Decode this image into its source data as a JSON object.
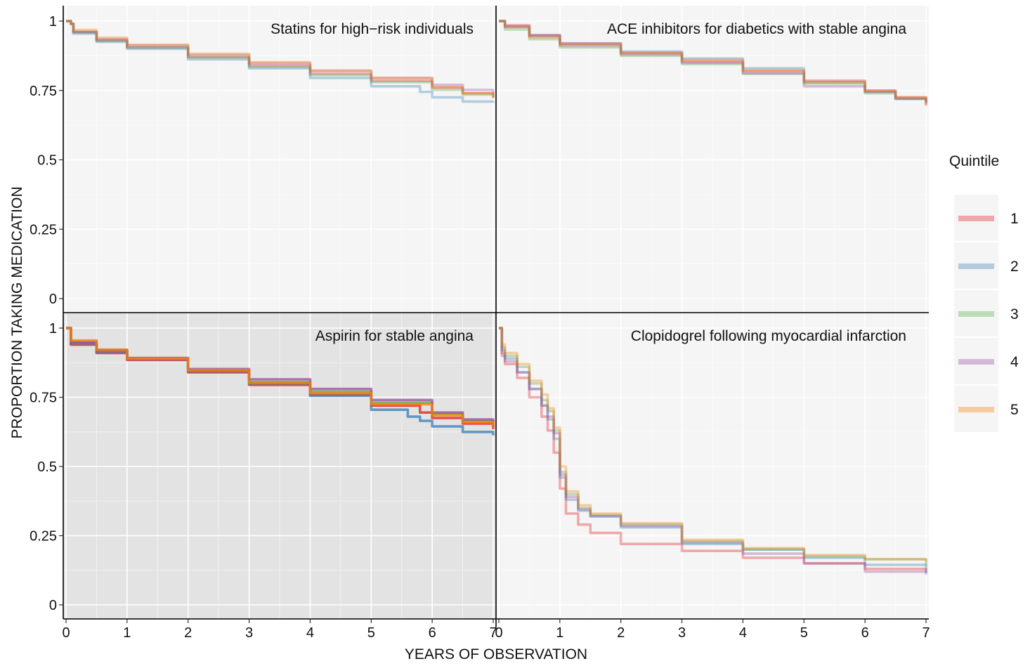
{
  "chart_data": [
    {
      "type": "line",
      "title": "Statins for high−risk individuals",
      "xlim": [
        0,
        7
      ],
      "ylim": [
        0,
        1
      ],
      "x_ticks": [
        "0",
        "1",
        "2",
        "3",
        "4",
        "5",
        "6",
        "7"
      ],
      "y_ticks": [
        "0",
        "0.25",
        "0.5",
        "0.75",
        "1"
      ],
      "shaded": false,
      "series": [
        {
          "name": "1",
          "x": [
            0,
            0.08,
            0.12,
            0.5,
            1,
            2,
            3,
            4,
            5,
            6,
            6.5,
            7
          ],
          "y": [
            1,
            0.99,
            0.96,
            0.93,
            0.905,
            0.87,
            0.84,
            0.81,
            0.785,
            0.76,
            0.74,
            0.725
          ]
        },
        {
          "name": "2",
          "x": [
            0,
            0.08,
            0.12,
            0.5,
            1,
            2,
            3,
            4,
            5,
            5.8,
            6,
            6.5,
            7
          ],
          "y": [
            1,
            0.99,
            0.955,
            0.925,
            0.9,
            0.862,
            0.83,
            0.795,
            0.765,
            0.745,
            0.725,
            0.71,
            0.705
          ]
        },
        {
          "name": "3",
          "x": [
            0,
            0.08,
            0.12,
            0.5,
            1,
            2,
            3,
            4,
            5,
            6,
            6.5,
            7
          ],
          "y": [
            1,
            0.99,
            0.96,
            0.93,
            0.905,
            0.87,
            0.835,
            0.805,
            0.78,
            0.752,
            0.735,
            0.722
          ]
        },
        {
          "name": "4",
          "x": [
            0,
            0.08,
            0.12,
            0.5,
            1,
            2,
            3,
            4,
            5,
            6,
            6.5,
            7
          ],
          "y": [
            1,
            0.99,
            0.962,
            0.935,
            0.912,
            0.878,
            0.848,
            0.82,
            0.795,
            0.77,
            0.752,
            0.735
          ]
        },
        {
          "name": "5",
          "x": [
            0,
            0.08,
            0.12,
            0.5,
            1,
            2,
            3,
            4,
            5,
            6,
            6.5,
            7
          ],
          "y": [
            1,
            0.99,
            0.968,
            0.94,
            0.915,
            0.882,
            0.852,
            0.822,
            0.795,
            0.762,
            0.74,
            0.722
          ]
        }
      ]
    },
    {
      "type": "line",
      "title": "ACE inhibitors for diabetics with stable angina",
      "xlim": [
        0,
        7
      ],
      "ylim": [
        0,
        1
      ],
      "x_ticks": [
        "0",
        "1",
        "2",
        "3",
        "4",
        "5",
        "6",
        "7"
      ],
      "y_ticks": [
        "0",
        "0.25",
        "0.5",
        "0.75",
        "1"
      ],
      "shaded": false,
      "series": [
        {
          "name": "1",
          "x": [
            0,
            0.05,
            0.1,
            0.5,
            1,
            2,
            3,
            4,
            5,
            6,
            6.5,
            7
          ],
          "y": [
            1,
            1,
            0.985,
            0.95,
            0.92,
            0.885,
            0.855,
            0.82,
            0.785,
            0.75,
            0.725,
            0.695
          ]
        },
        {
          "name": "2",
          "x": [
            0,
            0.05,
            0.1,
            0.5,
            1,
            2,
            3,
            4,
            5,
            6,
            6.5,
            7
          ],
          "y": [
            1,
            1,
            0.98,
            0.948,
            0.918,
            0.89,
            0.865,
            0.83,
            0.78,
            0.745,
            0.72,
            0.705
          ]
        },
        {
          "name": "3",
          "x": [
            0,
            0.05,
            0.1,
            0.5,
            1,
            2,
            3,
            4,
            5,
            6,
            6.5,
            7
          ],
          "y": [
            1,
            1,
            0.97,
            0.935,
            0.905,
            0.875,
            0.845,
            0.81,
            0.775,
            0.74,
            0.72,
            0.705
          ]
        },
        {
          "name": "4",
          "x": [
            0,
            0.05,
            0.1,
            0.5,
            1,
            2,
            3,
            4,
            5,
            6,
            6.5,
            7
          ],
          "y": [
            1,
            1,
            0.98,
            0.945,
            0.912,
            0.88,
            0.85,
            0.812,
            0.765,
            0.745,
            0.72,
            0.71
          ]
        },
        {
          "name": "5",
          "x": [
            0,
            0.05,
            0.1,
            0.5,
            1,
            2,
            3,
            4,
            5,
            6,
            6.5,
            7
          ],
          "y": [
            1,
            1,
            0.978,
            0.942,
            0.915,
            0.885,
            0.86,
            0.822,
            0.78,
            0.748,
            0.725,
            0.7
          ]
        }
      ]
    },
    {
      "type": "line",
      "title": "Aspirin for stable angina",
      "xlim": [
        0,
        7
      ],
      "ylim": [
        0,
        1
      ],
      "x_ticks": [
        "0",
        "1",
        "2",
        "3",
        "4",
        "5",
        "6",
        "7"
      ],
      "y_ticks": [
        "0",
        "0.25",
        "0.5",
        "0.75",
        "1"
      ],
      "shaded": true,
      "series": [
        {
          "name": "1",
          "x": [
            0,
            0.05,
            0.08,
            0.5,
            1,
            2,
            3,
            4,
            5,
            5.8,
            6,
            6.5,
            7
          ],
          "y": [
            1,
            1,
            0.94,
            0.91,
            0.885,
            0.84,
            0.795,
            0.76,
            0.72,
            0.695,
            0.675,
            0.655,
            0.635
          ]
        },
        {
          "name": "2",
          "x": [
            0,
            0.05,
            0.08,
            0.5,
            1,
            2,
            3,
            4,
            5,
            5.6,
            5.8,
            6,
            6.5,
            7
          ],
          "y": [
            1,
            1,
            0.945,
            0.915,
            0.888,
            0.845,
            0.8,
            0.755,
            0.705,
            0.68,
            0.665,
            0.645,
            0.625,
            0.612
          ]
        },
        {
          "name": "3",
          "x": [
            0,
            0.05,
            0.08,
            0.5,
            1,
            2,
            3,
            4,
            5,
            6,
            6.5,
            7
          ],
          "y": [
            1,
            1,
            0.95,
            0.92,
            0.89,
            0.848,
            0.805,
            0.77,
            0.73,
            0.69,
            0.665,
            0.64
          ]
        },
        {
          "name": "4",
          "x": [
            0,
            0.05,
            0.08,
            0.5,
            1,
            2,
            3,
            4,
            5,
            6,
            6.5,
            7
          ],
          "y": [
            1,
            1,
            0.95,
            0.92,
            0.892,
            0.852,
            0.815,
            0.78,
            0.74,
            0.695,
            0.67,
            0.64
          ]
        },
        {
          "name": "5",
          "x": [
            0,
            0.05,
            0.08,
            0.5,
            1,
            2,
            3,
            4,
            5,
            6,
            6.5,
            7
          ],
          "y": [
            1,
            1,
            0.955,
            0.922,
            0.89,
            0.848,
            0.802,
            0.765,
            0.725,
            0.685,
            0.66,
            0.64
          ]
        }
      ]
    },
    {
      "type": "line",
      "title": "Clopidogrel following myocardial infarction",
      "xlim": [
        0,
        7
      ],
      "ylim": [
        0,
        1
      ],
      "x_ticks": [
        "0",
        "1",
        "2",
        "3",
        "4",
        "5",
        "6",
        "7"
      ],
      "y_ticks": [
        "0",
        "0.25",
        "0.5",
        "0.75",
        "1"
      ],
      "shaded": false,
      "series": [
        {
          "name": "1",
          "x": [
            0,
            0.05,
            0.1,
            0.3,
            0.5,
            0.7,
            0.8,
            0.9,
            1,
            1.1,
            1.3,
            1.5,
            2,
            3,
            4,
            5,
            6,
            7
          ],
          "y": [
            1,
            0.9,
            0.87,
            0.82,
            0.75,
            0.68,
            0.63,
            0.55,
            0.42,
            0.33,
            0.29,
            0.26,
            0.22,
            0.195,
            0.17,
            0.15,
            0.13,
            0.12
          ]
        },
        {
          "name": "2",
          "x": [
            0,
            0.05,
            0.1,
            0.3,
            0.5,
            0.7,
            0.8,
            0.9,
            1,
            1.1,
            1.3,
            1.5,
            2,
            3,
            4,
            5,
            6,
            7
          ],
          "y": [
            1,
            0.92,
            0.89,
            0.84,
            0.78,
            0.72,
            0.67,
            0.6,
            0.46,
            0.38,
            0.34,
            0.32,
            0.28,
            0.22,
            0.2,
            0.17,
            0.145,
            0.115
          ]
        },
        {
          "name": "3",
          "x": [
            0,
            0.05,
            0.1,
            0.3,
            0.5,
            0.7,
            0.8,
            0.9,
            1,
            1.1,
            1.3,
            1.5,
            2,
            3,
            4,
            5,
            6,
            7
          ],
          "y": [
            1,
            0.93,
            0.9,
            0.86,
            0.8,
            0.74,
            0.7,
            0.63,
            0.48,
            0.4,
            0.35,
            0.325,
            0.29,
            0.23,
            0.2,
            0.175,
            0.165,
            0.14
          ]
        },
        {
          "name": "4",
          "x": [
            0,
            0.05,
            0.1,
            0.3,
            0.5,
            0.7,
            0.8,
            0.9,
            1,
            1.1,
            1.3,
            1.5,
            2,
            3,
            4,
            5,
            6,
            7
          ],
          "y": [
            1,
            0.91,
            0.88,
            0.84,
            0.78,
            0.72,
            0.68,
            0.62,
            0.47,
            0.39,
            0.345,
            0.32,
            0.285,
            0.225,
            0.185,
            0.15,
            0.12,
            0.11
          ]
        },
        {
          "name": "5",
          "x": [
            0,
            0.05,
            0.1,
            0.3,
            0.5,
            0.7,
            0.8,
            0.9,
            1,
            1.1,
            1.3,
            1.5,
            2,
            3,
            4,
            5,
            6,
            7
          ],
          "y": [
            1,
            0.94,
            0.91,
            0.87,
            0.81,
            0.76,
            0.71,
            0.64,
            0.5,
            0.41,
            0.36,
            0.33,
            0.295,
            0.235,
            0.205,
            0.18,
            0.165,
            0.155
          ]
        }
      ]
    }
  ],
  "axes": {
    "xlabel": "YEARS OF OBSERVATION",
    "ylabel": "PROPORTION TAKING MEDICATION"
  },
  "legend": {
    "title": "Quintile",
    "position": "right",
    "entries": [
      {
        "label": "1",
        "color": "#e41a1c"
      },
      {
        "label": "2",
        "color": "#377eb8"
      },
      {
        "label": "3",
        "color": "#4daf4a"
      },
      {
        "label": "4",
        "color": "#984ea3"
      },
      {
        "label": "5",
        "color": "#ff7f00"
      }
    ]
  },
  "style": {
    "panel_light": "#f5f5f5",
    "panel_dark": "#e3e3e3",
    "grid_color": "#ffffff",
    "divider_color": "#000000",
    "faded_line_opacity": 0.35,
    "bold_line_opacity": 0.75
  }
}
